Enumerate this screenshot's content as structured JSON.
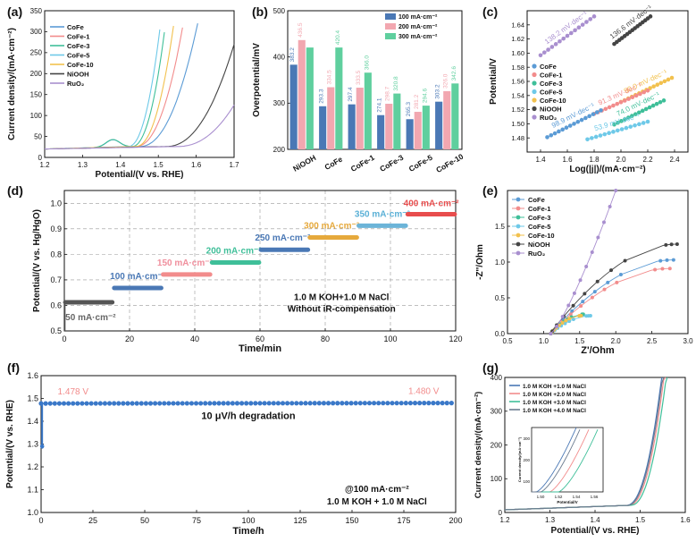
{
  "colors": {
    "CoFe": "#5b9bd5",
    "CoFe-1": "#f28c8c",
    "CoFe-3": "#3fbf99",
    "CoFe-5": "#6ec9e8",
    "CoFe-10": "#f2c14e",
    "NiOOH": "#444444",
    "RuO2": "#a98fcf",
    "bar100": "#4a78b5",
    "bar200": "#f2a7b0",
    "bar300": "#5fcf9e",
    "stepLabel": [
      "#666666",
      "#4a78b5",
      "#f08f9d",
      "#3fbf99",
      "#4a78b5",
      "#e6a93c",
      "#5ab0d6",
      "#e84d4d"
    ],
    "stepSeries": [
      "#555555",
      "#4a78b5",
      "#f28c8c",
      "#3fbf99",
      "#4a78b5",
      "#e6a93c",
      "#6cb4d8",
      "#e84d4d"
    ],
    "stab": "#3a78c8"
  },
  "panel_labels": [
    "(a)",
    "(b)",
    "(c)",
    "(d)",
    "(e)",
    "(f)",
    "(g)"
  ],
  "chart_data": [
    {
      "panel": "(a)",
      "type": "line",
      "xlabel": "Potential/(V vs. RHE)",
      "ylabel": "Current density/(mA·cm⁻²)",
      "xlim": [
        1.2,
        1.7
      ],
      "ylim": [
        0,
        350
      ],
      "xticks": [
        "1.2",
        "1.3",
        "1.4",
        "1.5",
        "1.6",
        "1.7"
      ],
      "yticks": [
        "0",
        "50",
        "100",
        "150",
        "200",
        "250",
        "300",
        "350"
      ],
      "legend": [
        "CoFe",
        "CoFe-1",
        "CoFe-3",
        "CoFe-5",
        "CoFe-10",
        "NiOOH",
        "RuO₂"
      ],
      "series": [
        {
          "name": "CoFe",
          "onset": 1.45,
          "end": [
            1.604,
            320
          ]
        },
        {
          "name": "CoFe-1",
          "onset": 1.44,
          "end": [
            1.566,
            320
          ]
        },
        {
          "name": "CoFe-3",
          "onset": 1.43,
          "end": [
            1.519,
            320
          ]
        },
        {
          "name": "CoFe-5",
          "onset": 1.42,
          "end": [
            1.506,
            320
          ]
        },
        {
          "name": "CoFe-10",
          "onset": 1.44,
          "end": [
            1.541,
            320
          ]
        },
        {
          "name": "NiOOH",
          "onset": 1.52,
          "end": [
            1.7,
            270
          ]
        },
        {
          "name": "RuO₂",
          "onset": 1.55,
          "end": [
            1.7,
            125
          ]
        }
      ]
    },
    {
      "panel": "(b)",
      "type": "bar",
      "ylabel": "Overpotential/mV",
      "ylim": [
        200,
        500
      ],
      "yticks": [
        "200",
        "300",
        "400",
        "500"
      ],
      "categories": [
        "NiOOH",
        "CoFe",
        "CoFe-1",
        "CoFe-3",
        "CoFe-5",
        "CoFe-10"
      ],
      "series": [
        {
          "name": "100 mA·cm⁻²",
          "values": [
            383.2,
            293.3,
            297.4,
            274.1,
            265.3,
            303.2
          ],
          "labels": [
            "383.2",
            "293.3",
            "297.4",
            "274.1",
            "265.3",
            "303.2"
          ]
        },
        {
          "name": "200 mA·cm⁻²",
          "values": [
            436.5,
            334.5,
            333.5,
            298.7,
            281.2,
            326.0
          ],
          "labels": [
            "436.5",
            "334.5",
            "333.5",
            "298.7",
            "281.2",
            "326.0"
          ]
        },
        {
          "name": "300 mA·cm⁻²",
          "values": [
            420.4,
            420.4,
            366.0,
            320.8,
            294.6,
            342.6
          ],
          "labels": [
            "",
            "420.4",
            "366.0",
            "320.8",
            "294.6",
            "342.6"
          ]
        }
      ]
    },
    {
      "panel": "(c)",
      "type": "scatter",
      "xlabel": "Log(|j|)/(mA·cm⁻²)",
      "ylabel": "Potential/V",
      "xlim": [
        1.3,
        2.5
      ],
      "ylim": [
        1.46,
        1.66
      ],
      "xticks": [
        "1.4",
        "1.6",
        "1.8",
        "2.0",
        "2.2",
        "2.4"
      ],
      "yticks": [
        "1.48",
        "1.50",
        "1.52",
        "1.54",
        "1.56",
        "1.58",
        "1.60",
        "1.62",
        "1.64"
      ],
      "legend": [
        "CoFe",
        "CoFe-1",
        "CoFe-3",
        "CoFe-5",
        "CoFe-10",
        "NiOOH",
        "RuO₂"
      ],
      "series": [
        {
          "name": "RuO₂",
          "x": [
            1.4,
            1.8
          ],
          "y": [
            1.597,
            1.652
          ],
          "annotation": "138.2 mV·dec⁻¹"
        },
        {
          "name": "NiOOH",
          "x": [
            1.95,
            2.22
          ],
          "y": [
            1.613,
            1.652
          ],
          "annotation": "136.6 mV·dec⁻¹"
        },
        {
          "name": "CoFe-10",
          "x": [
            2.0,
            2.38
          ],
          "y": [
            1.531,
            1.565
          ],
          "annotation": "90.0 mV·dec⁻¹"
        },
        {
          "name": "CoFe-1",
          "x": [
            1.8,
            2.2
          ],
          "y": [
            1.514,
            1.547
          ],
          "annotation": "91.3 mV·dec⁻¹"
        },
        {
          "name": "CoFe",
          "x": [
            1.45,
            1.85
          ],
          "y": [
            1.481,
            1.519
          ],
          "annotation": "98.9 mV·dec⁻¹"
        },
        {
          "name": "CoFe-3",
          "x": [
            1.95,
            2.32
          ],
          "y": [
            1.499,
            1.533
          ],
          "annotation": "74.0 mV·dec⁻¹"
        },
        {
          "name": "CoFe-5",
          "x": [
            1.75,
            2.2
          ],
          "y": [
            1.478,
            1.503
          ],
          "annotation": "53.9 mV·dec⁻¹"
        }
      ]
    },
    {
      "panel": "(d)",
      "type": "line",
      "xlabel": "Time/min",
      "ylabel": "Potential/(V vs. Hg/HgO)",
      "xlim": [
        0,
        120
      ],
      "ylim": [
        0.5,
        1.05
      ],
      "xticks": [
        "0",
        "20",
        "40",
        "60",
        "80",
        "100",
        "120"
      ],
      "yticks": [
        "0.5",
        "0.6",
        "0.7",
        "0.8",
        "0.9",
        "1.0"
      ],
      "annotations": [
        "1.0 M KOH+1.0 M NaCl",
        "Without iR-compensation"
      ],
      "steps": [
        {
          "label": "50 mA·cm⁻²",
          "t": [
            0,
            15
          ],
          "v": 0.612
        },
        {
          "label": "100 mA·cm⁻²",
          "t": [
            15,
            30
          ],
          "v": 0.668
        },
        {
          "label": "150 mA·cm⁻²",
          "t": [
            30,
            45
          ],
          "v": 0.721
        },
        {
          "label": "200 mA·cm⁻²",
          "t": [
            45,
            60
          ],
          "v": 0.768
        },
        {
          "label": "250 mA·cm⁻²",
          "t": [
            60,
            75
          ],
          "v": 0.818
        },
        {
          "label": "300 mA·cm⁻²",
          "t": [
            75,
            90
          ],
          "v": 0.866
        },
        {
          "label": "350 mA·cm⁻²",
          "t": [
            90,
            105
          ],
          "v": 0.912
        },
        {
          "label": "400 mA·cm⁻²",
          "t": [
            105,
            120
          ],
          "v": 0.957
        }
      ]
    },
    {
      "panel": "(e)",
      "type": "scatter",
      "xlabel": "Z'/Ohm",
      "ylabel": "-Z''/Ohm",
      "xlim": [
        0.5,
        3.0
      ],
      "ylim": [
        0,
        2.0
      ],
      "xticks": [
        "0.5",
        "1.0",
        "1.5",
        "2.0",
        "2.5",
        "3.0"
      ],
      "yticks": [
        "0.0",
        "0.5",
        "1.0",
        "1.5"
      ],
      "legend": [
        "CoFe",
        "CoFe-1",
        "CoFe-3",
        "CoFe-5",
        "CoFe-10",
        "NiOOH",
        "RuO₂"
      ],
      "series": [
        {
          "name": "CoFe",
          "Rs": 1.1,
          "D": 1.7,
          "tail": [
            2.8,
            1.03
          ]
        },
        {
          "name": "CoFe-1",
          "Rs": 1.1,
          "D": 1.6,
          "tail": [
            2.75,
            0.91
          ]
        },
        {
          "name": "CoFe-3",
          "Rs": 1.1,
          "D": 0.5,
          "tail": [
            1.55,
            0.27
          ]
        },
        {
          "name": "CoFe-5",
          "Rs": 1.1,
          "D": 0.55,
          "tail": [
            1.65,
            0.25
          ]
        },
        {
          "name": "CoFe-10",
          "Rs": 1.1,
          "D": 0.45,
          "tail": [
            1.52,
            0.25
          ]
        },
        {
          "name": "NiOOH",
          "Rs": 1.1,
          "D": 1.8,
          "tail": [
            2.85,
            1.25
          ]
        },
        {
          "name": "RuO₂",
          "Rs": 1.1,
          "D": 3.0,
          "tail": [
            2.0,
            2.0
          ]
        }
      ]
    },
    {
      "panel": "(f)",
      "type": "line",
      "xlabel": "Time/h",
      "ylabel": "Potential/(V vs. RHE)",
      "xlim": [
        0,
        200
      ],
      "ylim": [
        1.0,
        1.6
      ],
      "xticks": [
        "0",
        "25",
        "50",
        "75",
        "100",
        "125",
        "150",
        "175",
        "200"
      ],
      "yticks": [
        "1.0",
        "1.1",
        "1.2",
        "1.3",
        "1.4",
        "1.5",
        "1.6"
      ],
      "series": [
        {
          "name": "",
          "x": [
            0,
            200
          ],
          "y": [
            1.478,
            1.48
          ]
        }
      ],
      "start_label": "1.478 V",
      "end_label": "1.480 V",
      "annotations": [
        "10 μV/h degradation",
        "@100 mA·cm⁻²",
        "1.0 M KOH + 1.0 M NaCl"
      ]
    },
    {
      "panel": "(g)",
      "type": "line",
      "xlabel": "Potential/(V vs. RHE)",
      "ylabel": "Current density/(mA·cm⁻²)",
      "xlim": [
        1.2,
        1.6
      ],
      "ylim": [
        0,
        400
      ],
      "xticks": [
        "1.2",
        "1.3",
        "1.4",
        "1.5",
        "1.6"
      ],
      "yticks": [
        "0",
        "100",
        "200",
        "300",
        "400"
      ],
      "legend": [
        "1.0 M KOH +1.0 M NaCl",
        "1.0 M KOH +2.0 M NaCl",
        "1.0 M KOH +3.0 M NaCl",
        "1.0 M KOH +4.0 M NaCl"
      ],
      "inset": {
        "xlabel": "Potential/V",
        "ylabel": "Current density/(mA·cm⁻²)",
        "xticks": [
          "1.50",
          "1.52",
          "1.54",
          "1.56"
        ],
        "yticks": [
          "100",
          "200",
          "300"
        ]
      }
    }
  ]
}
